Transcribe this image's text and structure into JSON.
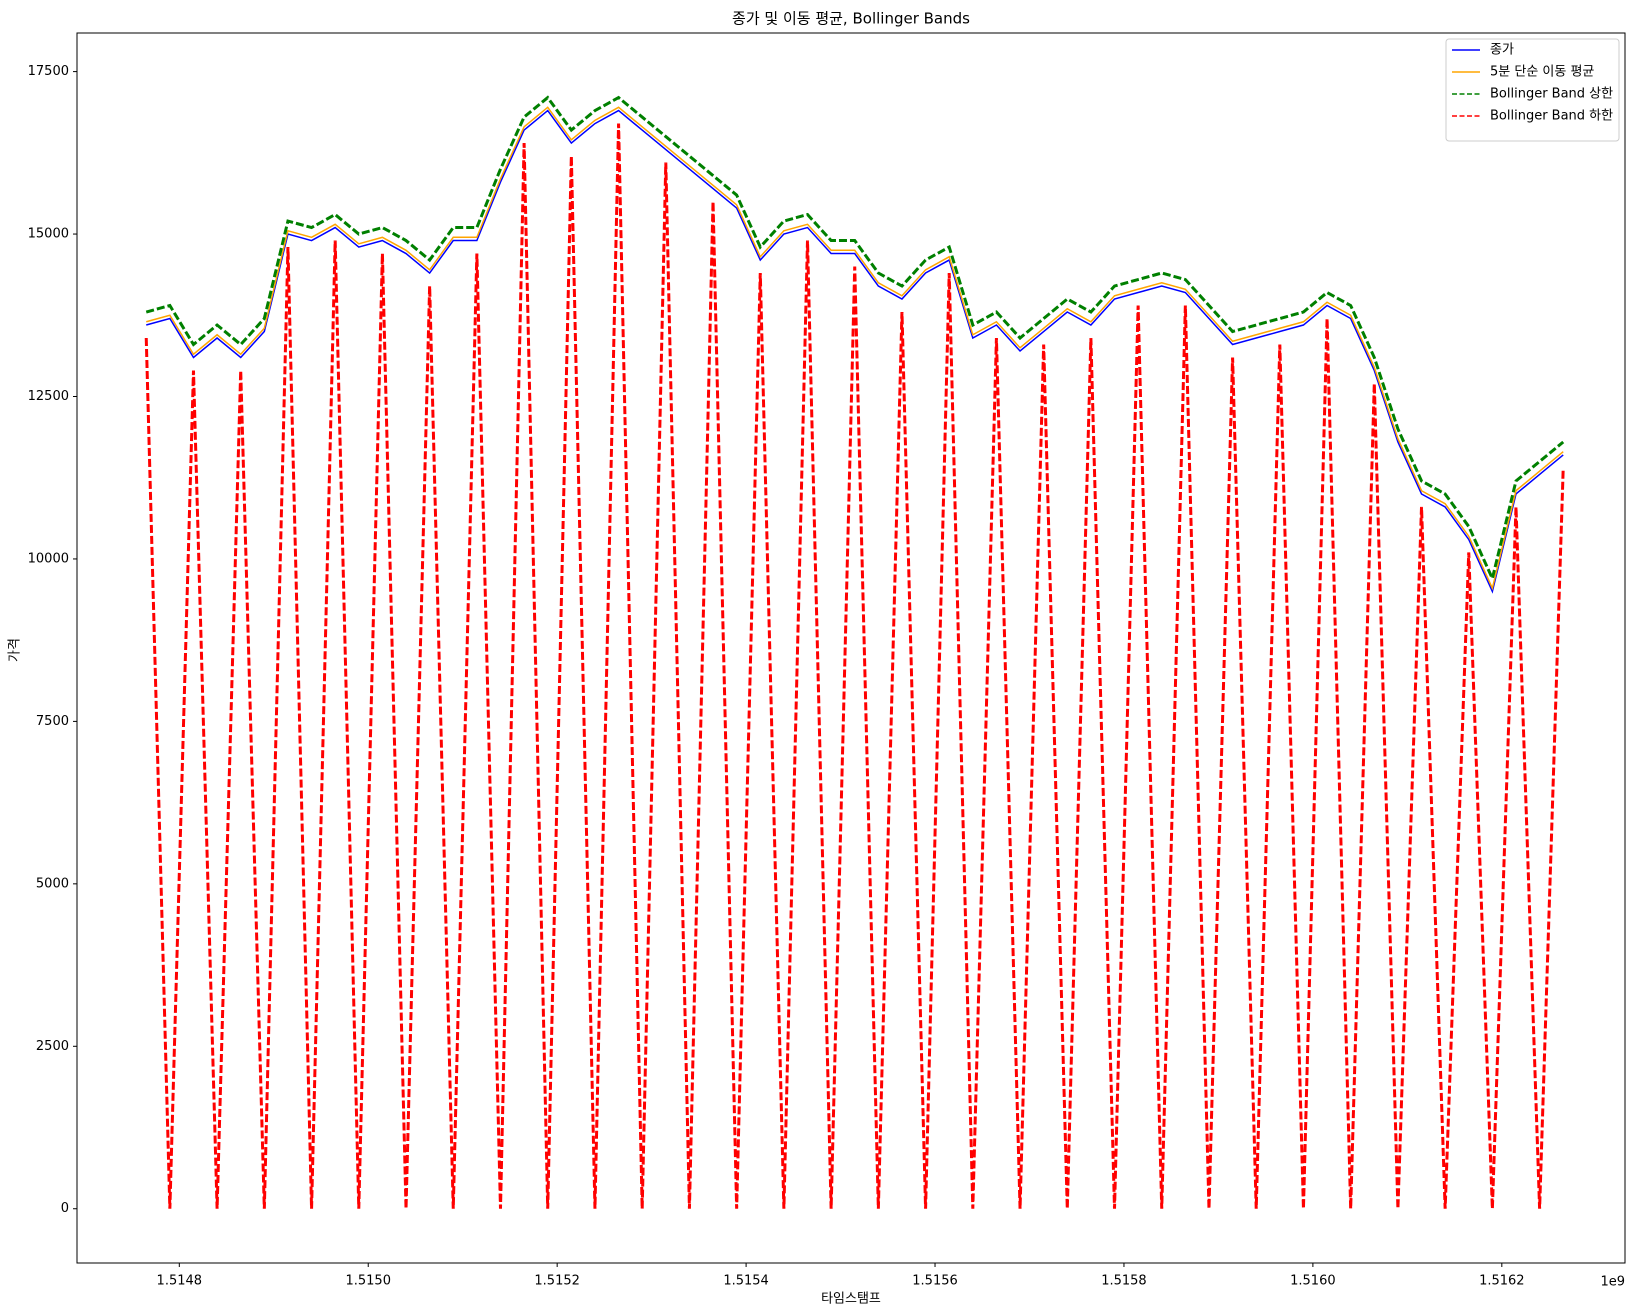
{
  "chart_data": {
    "type": "line",
    "title": "종가 및 이동 평균, Bollinger Bands",
    "xlabel": "타임스탬프",
    "ylabel": "가격",
    "x_offset_label": "1e9",
    "legend": "upper right",
    "xlim": [
      1514691700,
      1516330400
    ],
    "ylim": [
      -835,
      18094
    ],
    "xticks": [
      {
        "value": 1514800000,
        "label": "1.5148"
      },
      {
        "value": 1515000000,
        "label": "1.5150"
      },
      {
        "value": 1515200000,
        "label": "1.5152"
      },
      {
        "value": 1515400000,
        "label": "1.5154"
      },
      {
        "value": 1515600000,
        "label": "1.5156"
      },
      {
        "value": 1515800000,
        "label": "1.5158"
      },
      {
        "value": 1516000000,
        "label": "1.5160"
      },
      {
        "value": 1516200000,
        "label": "1.5162"
      }
    ],
    "yticks": [
      0,
      2500,
      5000,
      7500,
      10000,
      12500,
      15000,
      17500
    ],
    "x": [
      1514765000,
      1514790000,
      1514815000,
      1514840000,
      1514865000,
      1514890000,
      1514915000,
      1514940000,
      1514965000,
      1514990000,
      1515015000,
      1515040000,
      1515065000,
      1515090000,
      1515115000,
      1515140000,
      1515165000,
      1515190000,
      1515215000,
      1515240000,
      1515265000,
      1515290000,
      1515315000,
      1515340000,
      1515365000,
      1515390000,
      1515415000,
      1515440000,
      1515465000,
      1515490000,
      1515515000,
      1515540000,
      1515565000,
      1515590000,
      1515615000,
      1515640000,
      1515665000,
      1515690000,
      1515715000,
      1515740000,
      1515765000,
      1515790000,
      1515815000,
      1515840000,
      1515865000,
      1515890000,
      1515915000,
      1515940000,
      1515965000,
      1515990000,
      1516015000,
      1516040000,
      1516065000,
      1516090000,
      1516115000,
      1516140000,
      1516165000,
      1516190000,
      1516215000,
      1516240000,
      1516265000
    ],
    "series": [
      {
        "name": "종가",
        "color": "#0000ff",
        "linestyle": "solid",
        "values": [
          13600,
          13700,
          13100,
          13400,
          13100,
          13500,
          15000,
          14900,
          15100,
          14800,
          14900,
          14700,
          14400,
          14900,
          14900,
          15800,
          16600,
          16900,
          16400,
          16700,
          16900,
          16600,
          16300,
          16000,
          15700,
          15400,
          14600,
          15000,
          15100,
          14700,
          14700,
          14200,
          14000,
          14400,
          14600,
          13400,
          13600,
          13200,
          13500,
          13800,
          13600,
          14000,
          14100,
          14200,
          14100,
          13700,
          13300,
          13400,
          13500,
          13600,
          13900,
          13700,
          12900,
          11800,
          11000,
          10800,
          10300,
          9500,
          11000,
          11300,
          11600
        ]
      },
      {
        "name": "5분 단순 이동 평균",
        "color": "#ffa500",
        "linestyle": "solid",
        "values": [
          13650,
          13750,
          13150,
          13450,
          13150,
          13550,
          15050,
          14950,
          15150,
          14850,
          14950,
          14750,
          14450,
          14950,
          14950,
          15850,
          16650,
          16950,
          16450,
          16750,
          16950,
          16650,
          16350,
          16050,
          15750,
          15450,
          14650,
          15050,
          15150,
          14750,
          14750,
          14250,
          14050,
          14450,
          14650,
          13450,
          13650,
          13250,
          13550,
          13850,
          13650,
          14050,
          14150,
          14250,
          14150,
          13750,
          13350,
          13450,
          13550,
          13650,
          13950,
          13750,
          12950,
          11850,
          11050,
          10850,
          10350,
          9550,
          11050,
          11350,
          11650
        ]
      },
      {
        "name": "Bollinger Band 상한",
        "color": "#008000",
        "linestyle": "dashed",
        "values": [
          13800,
          13900,
          13300,
          13600,
          13300,
          13700,
          15200,
          15100,
          15300,
          15000,
          15100,
          14900,
          14600,
          15100,
          15100,
          16000,
          16800,
          17100,
          16600,
          16900,
          17100,
          16800,
          16500,
          16200,
          15900,
          15600,
          14800,
          15200,
          15300,
          14900,
          14900,
          14400,
          14200,
          14600,
          14800,
          13600,
          13800,
          13400,
          13700,
          14000,
          13800,
          14200,
          14300,
          14400,
          14300,
          13900,
          13500,
          13600,
          13700,
          13800,
          14100,
          13900,
          13100,
          12000,
          11200,
          11000,
          10500,
          9700,
          11200,
          11500,
          11800
        ]
      },
      {
        "name": "Bollinger Band 하한",
        "color": "#ff0000",
        "linestyle": "dashed",
        "values": [
          13400,
          0,
          12900,
          0,
          12900,
          0,
          14800,
          0,
          14900,
          0,
          14700,
          0,
          14200,
          0,
          14700,
          0,
          16400,
          0,
          16200,
          0,
          16700,
          0,
          16100,
          0,
          15500,
          0,
          14400,
          0,
          14900,
          0,
          14500,
          0,
          13800,
          0,
          14400,
          0,
          13400,
          0,
          13300,
          0,
          13400,
          0,
          13900,
          0,
          13900,
          0,
          13100,
          0,
          13300,
          0,
          13700,
          0,
          12700,
          0,
          10800,
          0,
          10100,
          0,
          10800,
          0,
          11400
        ]
      }
    ]
  }
}
